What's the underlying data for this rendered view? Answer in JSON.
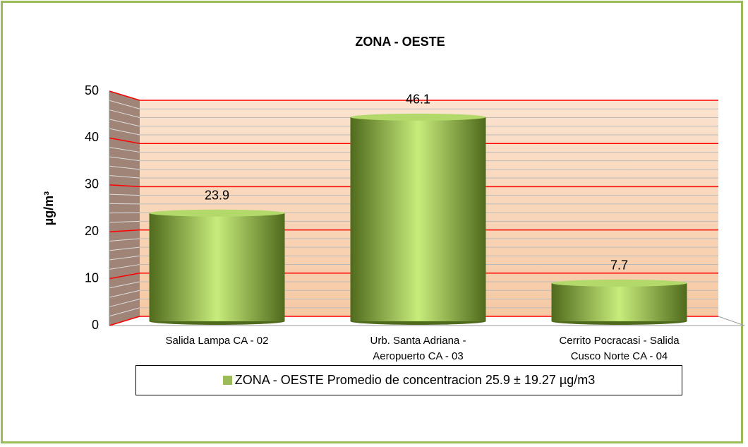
{
  "chart_data": {
    "type": "bar",
    "title": "ZONA - OESTE",
    "y_label": "µg/m³",
    "categories": [
      "Salida Lampa CA - 02",
      "Urb. Santa Adriana - Aeropuerto CA - 03",
      "Cerrito Pocracasi - Salida Cusco Norte CA - 04"
    ],
    "series": [
      {
        "name": "ZONA - OESTE Promedio de concentracion 25.9 ± 19.27 µg/m3",
        "color": "#9bbb59",
        "values": [
          23.9,
          46.1,
          7.7
        ]
      }
    ],
    "ylim": [
      0,
      50
    ],
    "yticks": [
      0,
      10,
      20,
      30,
      40,
      50
    ],
    "grid": true
  }
}
